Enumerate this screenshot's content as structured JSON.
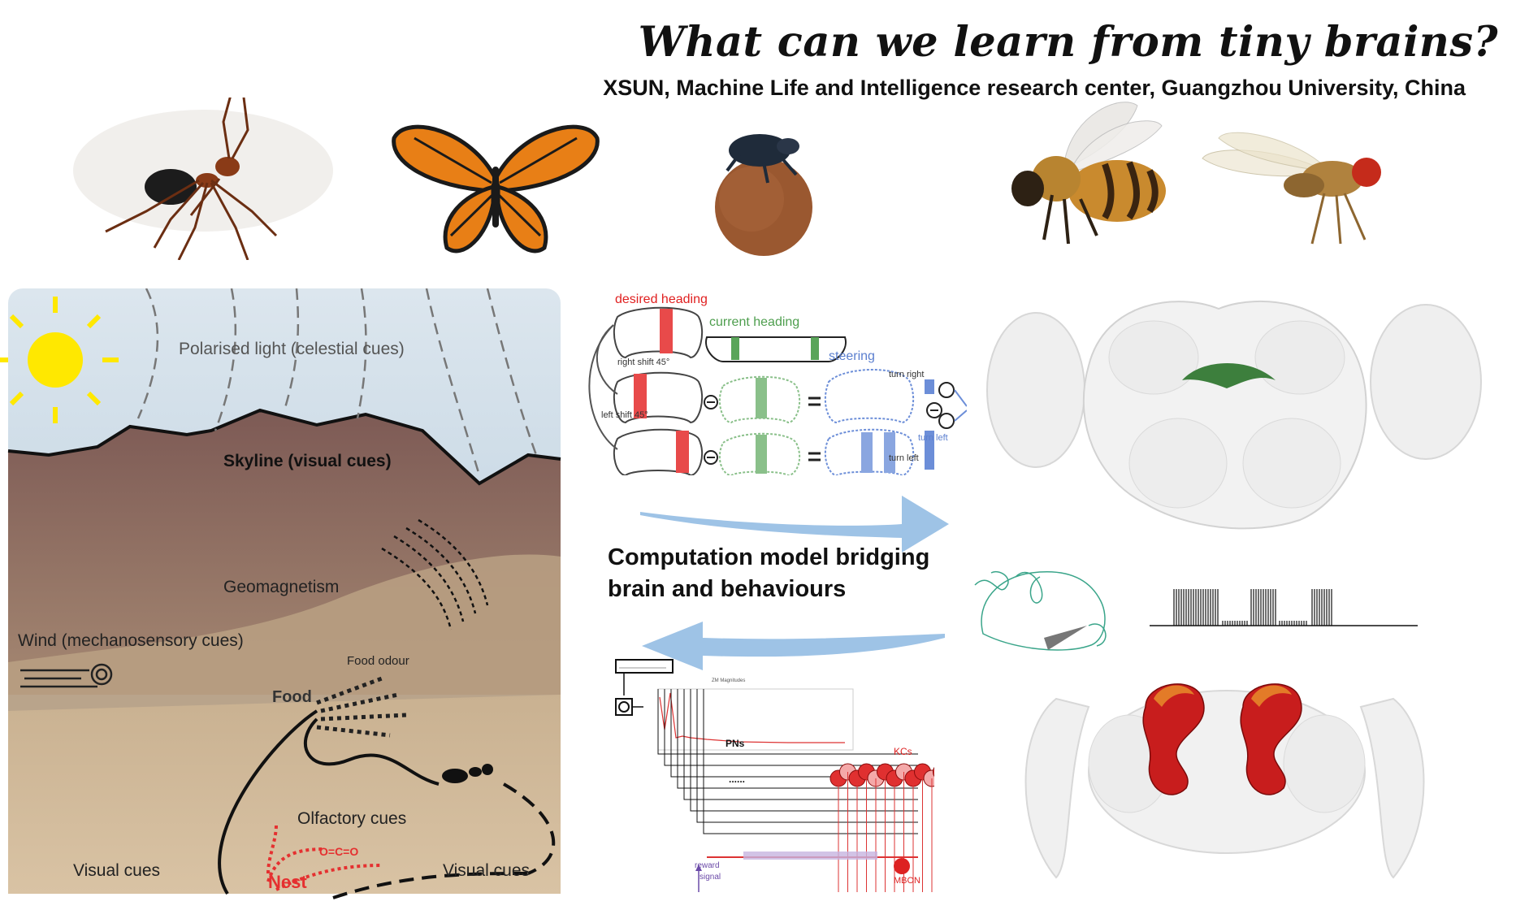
{
  "title": "What can we learn from tiny brains?",
  "subtitle": "XSUN, Machine Life and Intelligence research center, Guangzhou University, China",
  "insects": [
    "ant-icon",
    "butterfly-icon",
    "dung-beetle-icon",
    "bee-icon",
    "fruit-fly-icon"
  ],
  "scene": {
    "polarised_light": "Polarised light (celestial cues)",
    "skyline": "Skyline (visual cues)",
    "geomagnetism": "Geomagnetism",
    "wind": "Wind (mechanosensory cues)",
    "food_odour": "Food odour",
    "food": "Food",
    "olfactory": "Olfactory cues",
    "visual_left": "Visual cues",
    "visual_right": "Visual cues",
    "nest": "Nest",
    "co2": "O=C=O"
  },
  "steering": {
    "desired_heading": "desired heading",
    "current_heading": "current heading",
    "steering": "steering",
    "right_shift": "right shift 45°",
    "left_shift": "left shift 45°",
    "turn_right": "turn right",
    "turn_left_mid": "turn left",
    "turn_left_bottom": "turn left",
    "sum_symbol": "Σ",
    "minus_symbol": "−",
    "equals_symbol": "="
  },
  "center_text": {
    "line1": "Computation model bridging",
    "line2": "brain and behaviours"
  },
  "mb_model": {
    "zm_title": "ZM Magnitudes",
    "pns": "PNs",
    "dots": "......",
    "kcs": "KCs",
    "mbon": "MBON",
    "reward1": "reward",
    "reward2": "signal"
  },
  "colors": {
    "sky": "#b9cfdf",
    "desert": "#c9b08a",
    "mountain": "#8a6a5e",
    "arrow_blue": "#9ec3e6",
    "neuron_red": "#e02020",
    "cx_green": "#2f6f2f",
    "steer_blue": "#5b7fcf"
  }
}
